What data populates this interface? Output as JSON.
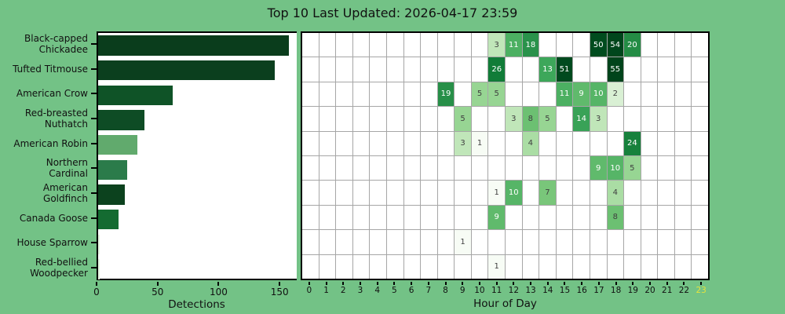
{
  "title": "Top 10 Last Updated: 2026-04-17 23:59",
  "colors": {
    "background": "#73c286",
    "plot_background": "#ffffff",
    "spine": "#000000",
    "grid_line": "#a6a6a6",
    "text": "#111111",
    "cell_text_dark": "#404040",
    "cell_text_light": "#ffffff",
    "current_hour_highlight": "#e3e33d",
    "colormap_greens": [
      "#f7fcf5",
      "#e5f5e0",
      "#c7e9c0",
      "#a1d99b",
      "#74c476",
      "#41ab5d",
      "#238b45",
      "#006d2c",
      "#00441b"
    ]
  },
  "chart_data": [
    {
      "type": "bar",
      "orientation": "horizontal",
      "xlabel": "Detections",
      "xlim": [
        0,
        164
      ],
      "xticks": [
        0,
        50,
        100,
        150
      ],
      "categories": [
        "Black-capped\nChickadee",
        "Tufted Titmouse",
        "American Crow",
        "Red-breasted\nNuthatch",
        "American Robin",
        "Northern\nCardinal",
        "American\nGoldfinch",
        "Canada Goose",
        "House Sparrow",
        "Red-bellied\nWoodpecker"
      ],
      "values": [
        156,
        145,
        61,
        38,
        32,
        24,
        22,
        17,
        1,
        1
      ],
      "bar_colors": [
        "#0a3d1c",
        "#0b3f1e",
        "#0f5327",
        "#0e4c25",
        "#61aa6d",
        "#2b7b4a",
        "#0c421e",
        "#146b31",
        "#e5f5e0",
        "#e5f5e0"
      ]
    },
    {
      "type": "heatmap",
      "xlabel": "Hour of Day",
      "hour_ticks": [
        0,
        1,
        2,
        3,
        4,
        5,
        6,
        7,
        8,
        9,
        10,
        11,
        12,
        13,
        14,
        15,
        16,
        17,
        18,
        19,
        20,
        21,
        22,
        23
      ],
      "highlighted_hour": 23,
      "color_scale": "log",
      "vmax": 55,
      "rows": [
        {
          "species": "Black-capped Chickadee",
          "cells": {
            "11": 3,
            "12": 11,
            "13": 18,
            "17": 50,
            "18": 54,
            "19": 20
          }
        },
        {
          "species": "Tufted Titmouse",
          "cells": {
            "11": 26,
            "14": 13,
            "15": 51,
            "18": 55
          }
        },
        {
          "species": "American Crow",
          "cells": {
            "8": 19,
            "10": 5,
            "11": 5,
            "15": 11,
            "16": 9,
            "17": 10,
            "18": 2
          }
        },
        {
          "species": "Red-breasted Nuthatch",
          "cells": {
            "9": 5,
            "12": 3,
            "13": 8,
            "14": 5,
            "16": 14,
            "17": 3
          }
        },
        {
          "species": "American Robin",
          "cells": {
            "9": 3,
            "10": 1,
            "13": 4,
            "19": 24
          }
        },
        {
          "species": "Northern Cardinal",
          "cells": {
            "17": 9,
            "18": 10,
            "19": 5
          }
        },
        {
          "species": "American Goldfinch",
          "cells": {
            "11": 1,
            "12": 10,
            "14": 7,
            "18": 4
          }
        },
        {
          "species": "Canada Goose",
          "cells": {
            "11": 9,
            "18": 8
          }
        },
        {
          "species": "House Sparrow",
          "cells": {
            "9": 1
          }
        },
        {
          "species": "Red-bellied Woodpecker",
          "cells": {
            "11": 1
          }
        }
      ]
    }
  ]
}
